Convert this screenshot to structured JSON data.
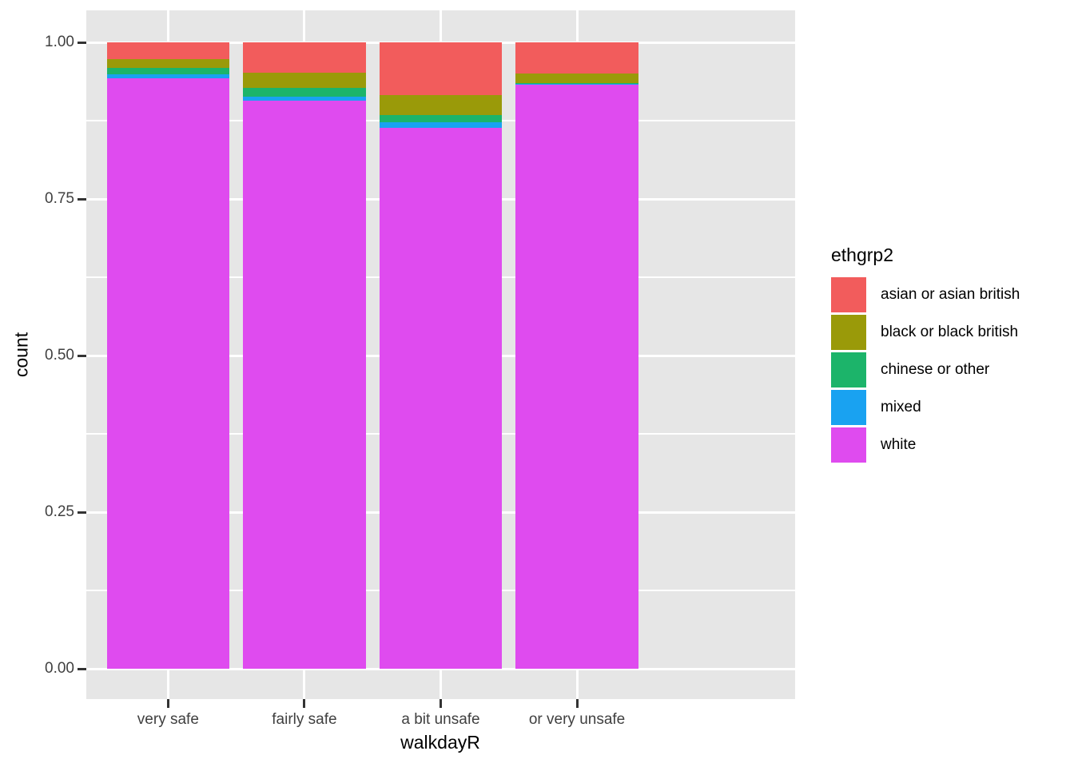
{
  "chart_data": {
    "type": "bar",
    "stacked": true,
    "normalized": true,
    "title": "",
    "xlabel": "walkdayR",
    "ylabel": "count",
    "legend_title": "ethgrp2",
    "legend_position": "right",
    "grid": true,
    "categories": [
      "very safe",
      "fairly safe",
      "a bit unsafe",
      "or very unsafe"
    ],
    "series": [
      {
        "name": "white",
        "color": "#DF4BEF",
        "values": [
          0.943,
          0.907,
          0.864,
          0.933
        ]
      },
      {
        "name": "mixed",
        "color": "#19A2F1",
        "values": [
          0.006,
          0.006,
          0.008,
          0.001
        ]
      },
      {
        "name": "chinese or other",
        "color": "#1CB46A",
        "values": [
          0.01,
          0.014,
          0.012,
          0.001
        ]
      },
      {
        "name": "black or black british",
        "color": "#9A9A09",
        "values": [
          0.014,
          0.025,
          0.032,
          0.015
        ]
      },
      {
        "name": "asian or asian british",
        "color": "#F25C5C",
        "values": [
          0.027,
          0.048,
          0.084,
          0.05
        ]
      }
    ],
    "ylim": [
      0,
      1
    ],
    "yticks": {
      "values": [
        0.0,
        0.25,
        0.5,
        0.75,
        1.0
      ],
      "labels": [
        "0.00",
        "0.25",
        "0.50",
        "0.75",
        "1.00"
      ]
    },
    "legend_order_note": "legend lists series top-to-bottom: asian, black, chinese, mixed, white (reverse of stack order)",
    "style": {
      "panel_background": "#E6E6E6",
      "gridline_color": "#FFFFFF",
      "tick_mark_color": "#333333",
      "tick_label_color": "#404040",
      "axis_title_color": "#000000",
      "figure_background": "#FFFFFF"
    }
  }
}
